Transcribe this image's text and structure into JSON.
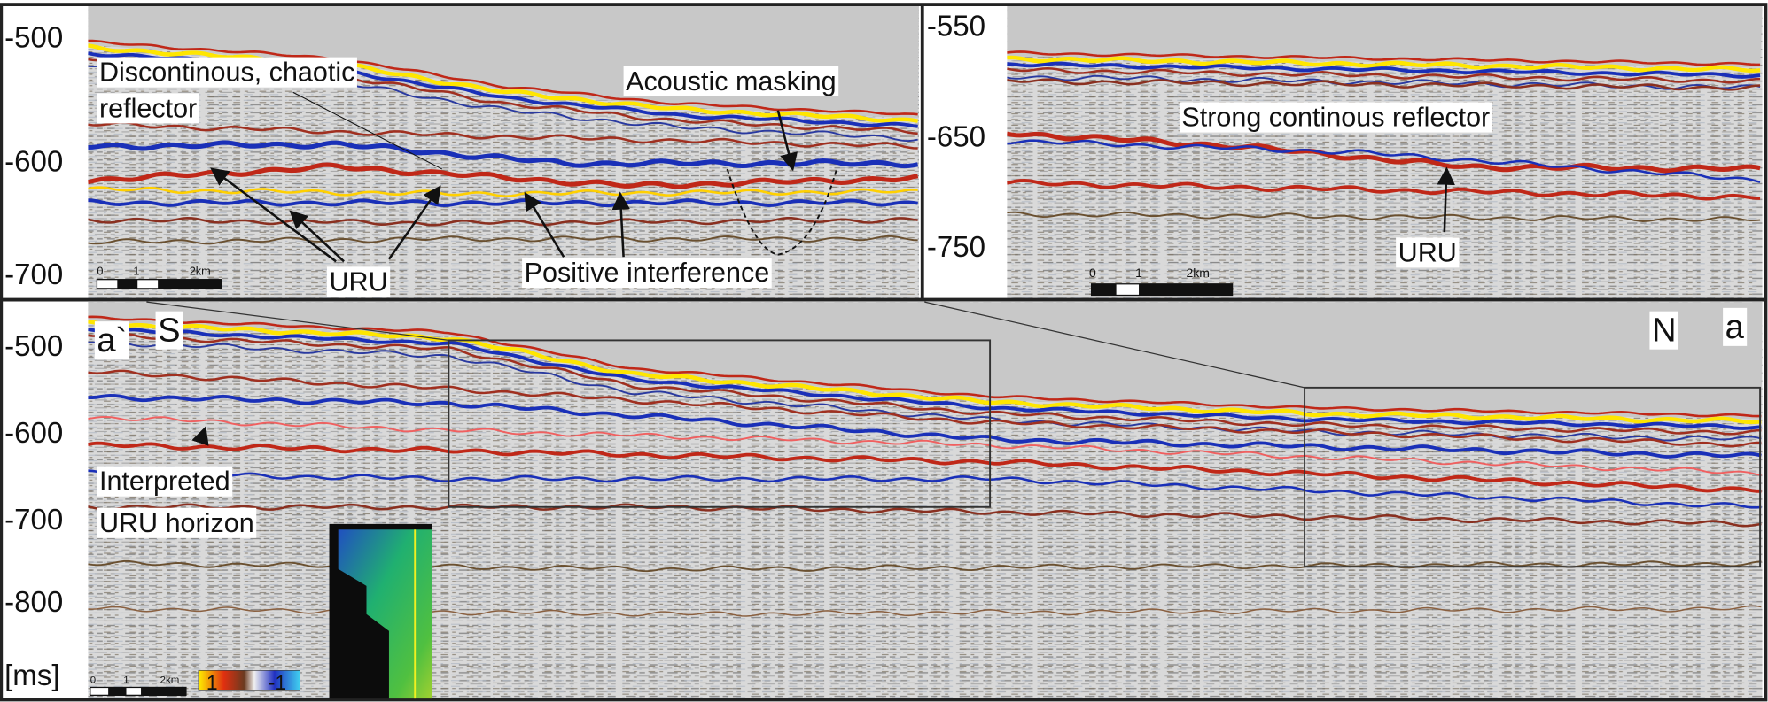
{
  "panels": {
    "top_left": {
      "axis_labels": [
        "-500",
        "-600",
        "-700"
      ],
      "annotations": [
        "Discontinous, chaotic",
        "reflector",
        "Acoustic masking",
        "URU",
        "Positive interference"
      ],
      "scale_bar": [
        "0",
        "1",
        "2km"
      ]
    },
    "top_right": {
      "axis_labels": [
        "-550",
        "-650",
        "-750"
      ],
      "annotations": [
        "Strong continous reflector",
        "URU"
      ],
      "scale_bar": [
        "0",
        "1",
        "2km"
      ]
    },
    "bottom": {
      "axis_labels": [
        "-500",
        "-600",
        "-700",
        "-800"
      ],
      "unit": "[ms]",
      "ends": [
        "a`",
        "S",
        "N",
        "a"
      ],
      "annotations": [
        "Interpreted",
        "URU horizon"
      ],
      "scale_bar": [
        "0",
        "1",
        "2km"
      ],
      "colorbar": [
        "1",
        "-1"
      ]
    }
  }
}
